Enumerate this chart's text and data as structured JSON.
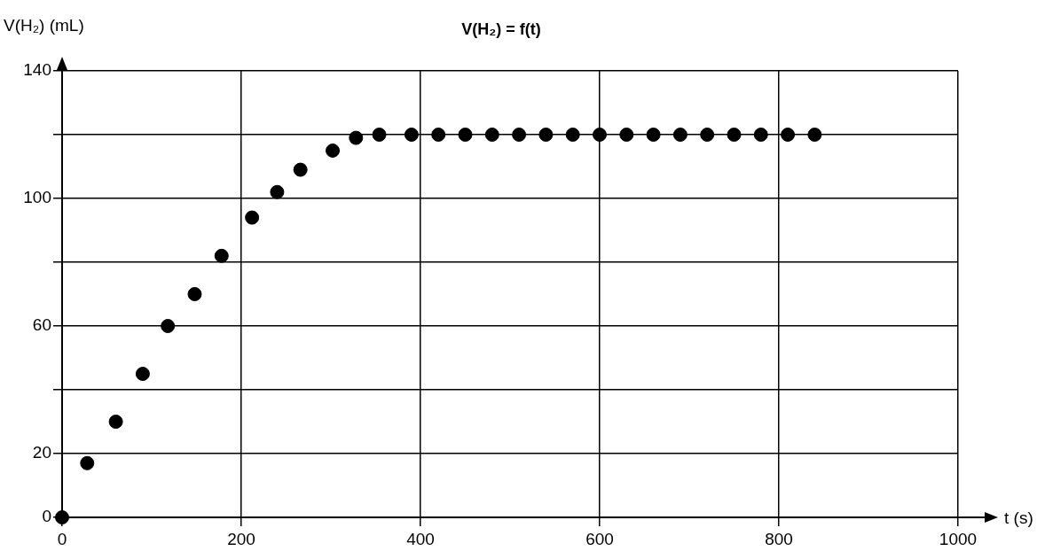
{
  "chart_data": {
    "type": "scatter",
    "title": "V(H₂) = f(t)",
    "xlabel": "t (s)",
    "ylabel": "V(H₂) (mL)",
    "x": [
      0,
      28,
      60,
      90,
      118,
      148,
      178,
      212,
      240,
      266,
      302,
      328,
      354,
      390,
      420,
      450,
      480,
      510,
      540,
      570,
      600,
      630,
      660,
      690,
      720,
      750,
      780,
      810,
      840
    ],
    "series": [
      {
        "color": "#000000",
        "values": [
          0,
          17,
          30,
          45,
          60,
          70,
          82,
          94,
          102,
          109,
          115,
          119,
          120,
          120,
          120,
          120,
          120,
          120,
          120,
          120,
          120,
          120,
          120,
          120,
          120,
          120,
          120,
          120,
          120
        ]
      }
    ],
    "xlim": [
      0,
      1000
    ],
    "xticks": [
      0,
      200,
      400,
      600,
      800,
      1000
    ],
    "ylim": [
      0,
      140
    ],
    "yticks": [
      0,
      20,
      {
        "value": 40,
        "label": null
      },
      60,
      {
        "value": 80,
        "label": null
      },
      100,
      {
        "value": 120,
        "label": null
      },
      140
    ],
    "grid": true,
    "legend": false,
    "marker": "circle"
  }
}
